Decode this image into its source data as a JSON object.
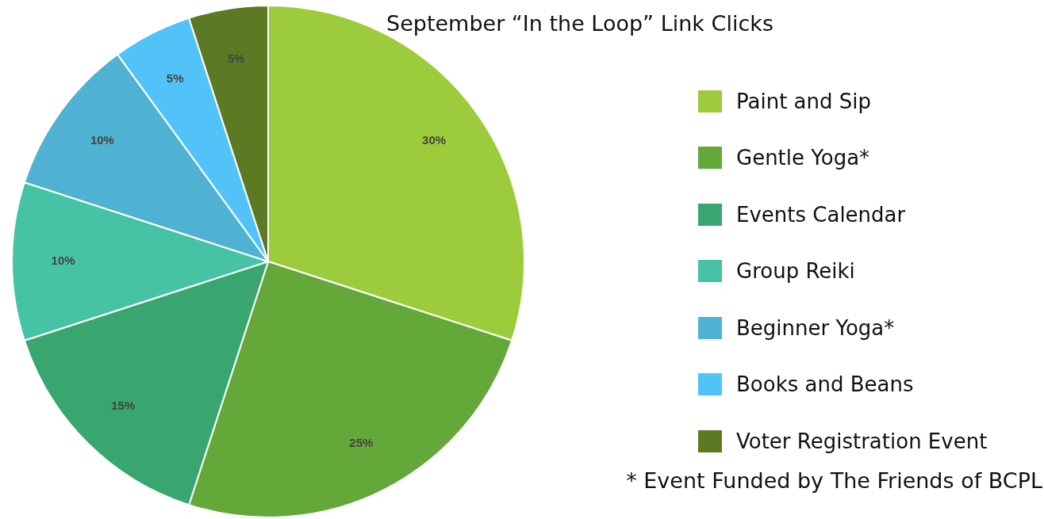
{
  "chart_data": {
    "type": "pie",
    "title": "September “In the Loop” Link Clicks",
    "categories": [
      "Paint and Sip",
      "Gentle Yoga*",
      "Events Calendar",
      "Group Reiki",
      "Beginner Yoga*",
      "Books and Beans",
      "Voter Registration Event"
    ],
    "values": [
      30,
      25,
      15,
      10,
      10,
      5,
      5
    ],
    "colors": [
      "#9ccc3c",
      "#64a83a",
      "#38a66e",
      "#46c2a5",
      "#4fb2d2",
      "#52c3f8",
      "#5c7a23"
    ],
    "value_labels": [
      "30%",
      "25%",
      "15%",
      "10%",
      "10%",
      "5%",
      "5%"
    ],
    "legend": "right",
    "annotations": [
      "* Event Funded by The Friends of BCPL"
    ]
  }
}
